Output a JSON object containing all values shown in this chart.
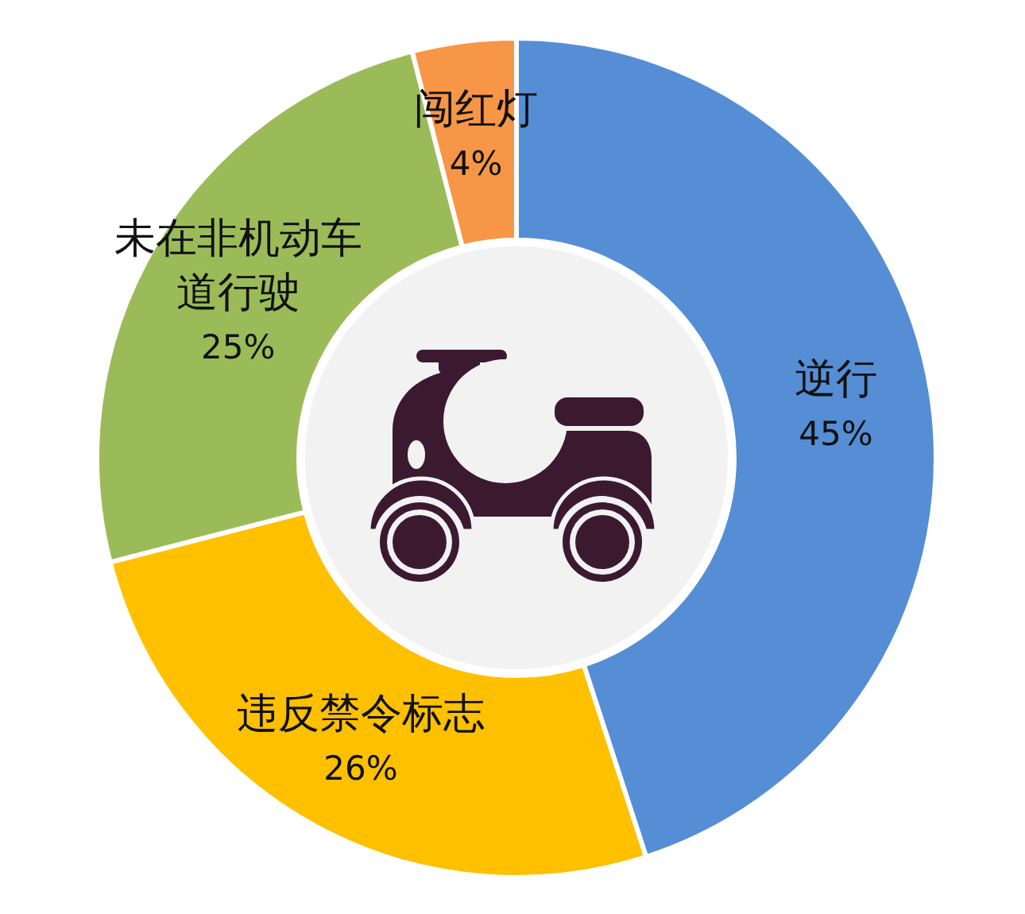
{
  "chart_data": {
    "type": "donut",
    "categories": [
      "逆行",
      "违反禁令标志",
      "未在非机动车道行驶",
      "闯红灯"
    ],
    "values": [
      45,
      26,
      25,
      4
    ],
    "colors": [
      "#558ed5",
      "#ffc000",
      "#9bbb59",
      "#f79646"
    ],
    "value_labels": [
      "45%",
      "26%",
      "25%",
      "4%"
    ]
  }
}
